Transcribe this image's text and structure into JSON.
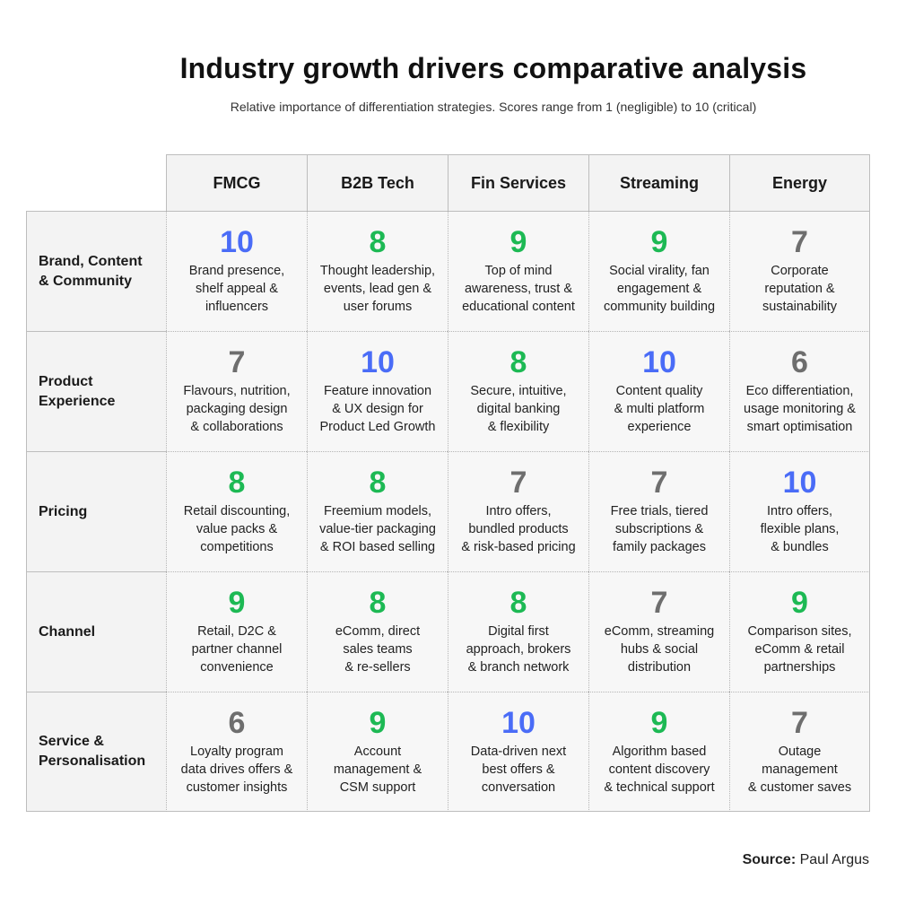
{
  "chart_data": {
    "type": "table",
    "title": "Industry growth drivers comparative analysis",
    "subtitle": "Relative importance of differentiation strategies. Scores range from 1 (negligible) to 10 (critical)",
    "columns": [
      "FMCG",
      "B2B Tech",
      "Fin Services",
      "Streaming",
      "Energy"
    ],
    "rows": [
      {
        "label": "Brand, Content\n& Community",
        "cells": [
          {
            "score": "10",
            "text": "Brand presence,\nshelf appeal &\ninfluencers"
          },
          {
            "score": "8",
            "text": "Thought leadership,\nevents, lead gen &\nuser forums"
          },
          {
            "score": "9",
            "text": "Top of mind\nawareness, trust &\neducational content"
          },
          {
            "score": "9",
            "text": "Social virality, fan\nengagement &\ncommunity building"
          },
          {
            "score": "7",
            "text": "Corporate\nreputation &\nsustainability"
          }
        ]
      },
      {
        "label": "Product\nExperience",
        "cells": [
          {
            "score": "7",
            "text": "Flavours, nutrition,\npackaging design\n& collaborations"
          },
          {
            "score": "10",
            "text": "Feature innovation\n& UX design for\nProduct Led Growth"
          },
          {
            "score": "8",
            "text": "Secure, intuitive,\ndigital banking\n& flexibility"
          },
          {
            "score": "10",
            "text": "Content quality\n& multi platform\nexperience"
          },
          {
            "score": "6",
            "text": "Eco differentiation,\nusage monitoring &\nsmart optimisation"
          }
        ]
      },
      {
        "label": "Pricing",
        "cells": [
          {
            "score": "8",
            "text": "Retail discounting,\nvalue packs &\ncompetitions"
          },
          {
            "score": "8",
            "text": "Freemium models,\nvalue-tier packaging\n& ROI based selling"
          },
          {
            "score": "7",
            "text": "Intro offers,\nbundled products\n& risk-based pricing"
          },
          {
            "score": "7",
            "text": "Free trials, tiered\nsubscriptions &\nfamily packages"
          },
          {
            "score": "10",
            "text": "Intro offers,\nflexible plans,\n& bundles"
          }
        ]
      },
      {
        "label": "Channel",
        "cells": [
          {
            "score": "9",
            "text": "Retail, D2C &\npartner channel\nconvenience"
          },
          {
            "score": "8",
            "text": "eComm, direct\nsales teams\n& re-sellers"
          },
          {
            "score": "8",
            "text": "Digital first\napproach, brokers\n& branch network"
          },
          {
            "score": "7",
            "text": "eComm, streaming\nhubs & social\ndistribution"
          },
          {
            "score": "9",
            "text": "Comparison sites,\neComm & retail\npartnerships"
          }
        ]
      },
      {
        "label": "Service &\nPersonalisation",
        "cells": [
          {
            "score": "6",
            "text": "Loyalty program\ndata drives offers &\ncustomer insights"
          },
          {
            "score": "9",
            "text": "Account\nmanagement &\nCSM support"
          },
          {
            "score": "10",
            "text": "Data-driven next\nbest offers &\nconversation"
          },
          {
            "score": "9",
            "text": "Algorithm based\ncontent discovery\n& technical support"
          },
          {
            "score": "7",
            "text": "Outage\nmanagement\n& customer saves"
          }
        ]
      }
    ],
    "score_colors": {
      "10": "#4a6cf7",
      "9": "#1db954",
      "8": "#1db954",
      "7": "#6e6e6e",
      "6": "#6e6e6e"
    }
  },
  "source": {
    "label": "Source:",
    "name": "Paul Argus"
  }
}
